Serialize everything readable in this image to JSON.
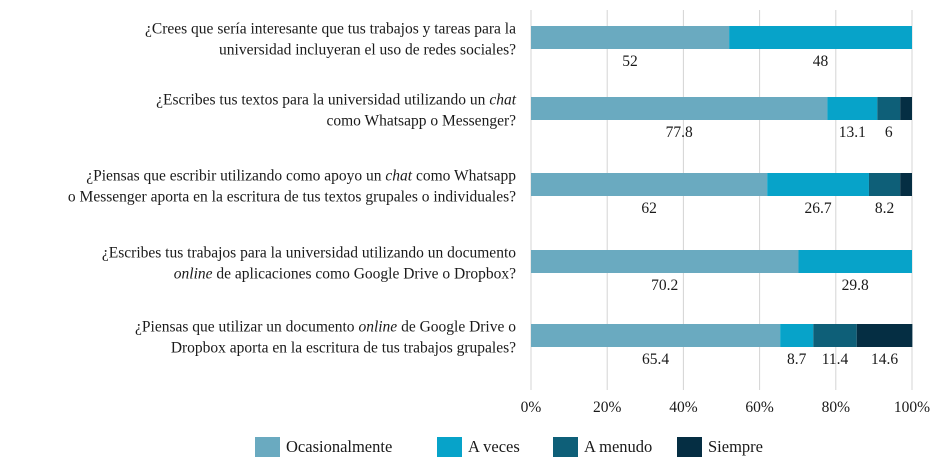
{
  "chart_data": {
    "type": "bar",
    "orientation": "horizontal",
    "stacked": true,
    "percent": true,
    "categories": [
      [
        [
          {
            "t": "¿Crees que sería interesante que tus trabajos y tareas para la"
          }
        ],
        [
          {
            "t": "universidad incluyeran el uso de redes sociales?"
          }
        ]
      ],
      [
        [
          {
            "t": "¿Escribes tus textos para la universidad utilizando un "
          },
          {
            "t": "chat",
            "i": true
          }
        ],
        [
          {
            "t": "como Whatsapp o Messenger?"
          }
        ]
      ],
      [
        [
          {
            "t": "¿Piensas que escribir utilizando como apoyo un "
          },
          {
            "t": "chat",
            "i": true
          },
          {
            "t": " como Whatsapp"
          }
        ],
        [
          {
            "t": "o Messenger aporta en la escritura de tus textos grupales o individuales?"
          }
        ]
      ],
      [
        [
          {
            "t": "¿Escribes tus trabajos para la universidad utilizando un documento"
          }
        ],
        [
          {
            "t": "online",
            "i": true
          },
          {
            "t": " de aplicaciones como Google Drive o Dropbox?"
          }
        ]
      ],
      [
        [
          {
            "t": "¿Piensas que utilizar un documento "
          },
          {
            "t": "online",
            "i": true
          },
          {
            "t": " de Google Drive o"
          }
        ],
        [
          {
            "t": "Dropbox aporta en la escritura de tus trabajos grupales?"
          }
        ]
      ]
    ],
    "series": [
      {
        "name": "Ocasionalmente",
        "color": "#6aaac0",
        "values": [
          52,
          77.8,
          62,
          70.2,
          65.4
        ]
      },
      {
        "name": "A veces",
        "color": "#07a3c9",
        "values": [
          48,
          13.1,
          26.7,
          29.8,
          8.7
        ]
      },
      {
        "name": "A menudo",
        "color": "#0e5f78",
        "values": [
          0,
          6,
          8.2,
          0,
          11.4
        ]
      },
      {
        "name": "Siempre",
        "color": "#052e43",
        "values": [
          0,
          3.1,
          3.1,
          0,
          14.6
        ]
      }
    ],
    "data_labels": [
      [
        "52",
        "48",
        null,
        null
      ],
      [
        "77.8",
        "13.1",
        "6",
        null
      ],
      [
        "62",
        "26.7",
        "8.2",
        null
      ],
      [
        "70.2",
        "29.8",
        null,
        null
      ],
      [
        "65.4",
        "8.7",
        "11.4",
        "14.6"
      ]
    ],
    "x_ticks": [
      "0%",
      "20%",
      "40%",
      "60%",
      "80%",
      "100%"
    ],
    "xlim": [
      0,
      100
    ],
    "grid": true,
    "legend_position": "bottom"
  }
}
